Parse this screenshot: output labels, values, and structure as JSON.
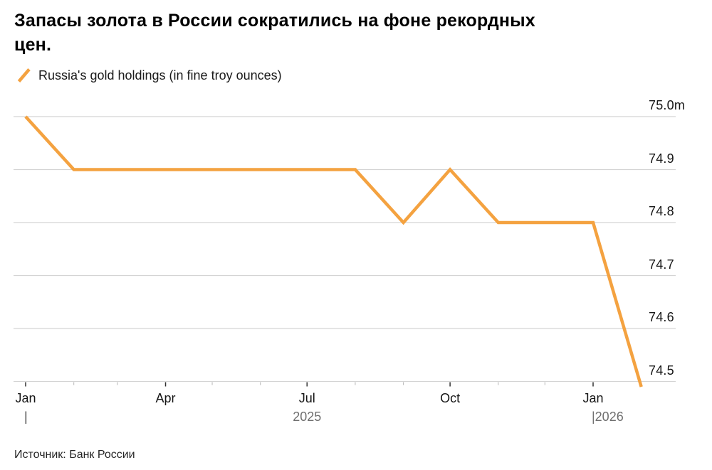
{
  "title": "Запасы золота в России сократились на фоне рекордных\nцен.",
  "legend": {
    "label": "Russia's gold holdings (in fine troy ounces)",
    "line_color": "#f4a240"
  },
  "source": "Источник: Банк России",
  "colors": {
    "line": "#f4a240",
    "grid": "#d4d4d4",
    "axis": "#c9c9c9",
    "tick_major": "#333333",
    "tick_minor": "#b5b5b5",
    "axis_text": "#161616",
    "year_text": "#6f6f6f"
  },
  "chart_data": {
    "type": "line",
    "title": "Запасы золота в России сократились на фоне рекордных цен.",
    "unit": "million fine troy ounces",
    "grid": true,
    "legend_position": "top-left",
    "y_axis_side": "right",
    "ylim": [
      74.5,
      75.0
    ],
    "xlim": [
      "2025-01",
      "2026-02"
    ],
    "series": [
      {
        "name": "Russia's gold holdings (in fine troy ounces)",
        "color": "#f4a240",
        "points": [
          [
            "2025-01",
            75.0
          ],
          [
            "2025-02",
            74.9
          ],
          [
            "2025-03",
            74.9
          ],
          [
            "2025-04",
            74.9
          ],
          [
            "2025-05",
            74.9
          ],
          [
            "2025-06",
            74.9
          ],
          [
            "2025-07",
            74.9
          ],
          [
            "2025-08",
            74.9
          ],
          [
            "2025-09",
            74.8
          ],
          [
            "2025-10",
            74.9
          ],
          [
            "2025-11",
            74.8
          ],
          [
            "2025-12",
            74.8
          ],
          [
            "2026-01",
            74.8
          ],
          [
            "2026-02",
            74.49
          ]
        ]
      }
    ],
    "y_ticks": [
      {
        "value": 75.0,
        "label": "75.0m"
      },
      {
        "value": 74.9,
        "label": "74.9"
      },
      {
        "value": 74.8,
        "label": "74.8"
      },
      {
        "value": 74.7,
        "label": "74.7"
      },
      {
        "value": 74.6,
        "label": "74.6"
      },
      {
        "value": 74.5,
        "label": "74.5"
      }
    ],
    "x_axis": {
      "major_ticks": [
        {
          "date": "2025-01",
          "label": "Jan"
        },
        {
          "date": "2025-04",
          "label": "Apr"
        },
        {
          "date": "2025-07",
          "label": "Jul"
        },
        {
          "date": "2025-10",
          "label": "Oct"
        },
        {
          "date": "2026-01",
          "label": "Jan"
        }
      ],
      "minor_tick_dates": [
        "2025-02",
        "2025-03",
        "2025-05",
        "2025-06",
        "2025-08",
        "2025-09",
        "2025-11",
        "2025-12"
      ],
      "year_row": [
        {
          "date": "2025-01",
          "label": "|",
          "centered": false,
          "color": "#4a4a4a"
        },
        {
          "date": "2025-07",
          "label": "2025",
          "centered": true,
          "color": "#6f6f6f"
        },
        {
          "date": "2026-01",
          "label": "|2026",
          "centered": false,
          "color": "#6f6f6f"
        }
      ]
    }
  }
}
